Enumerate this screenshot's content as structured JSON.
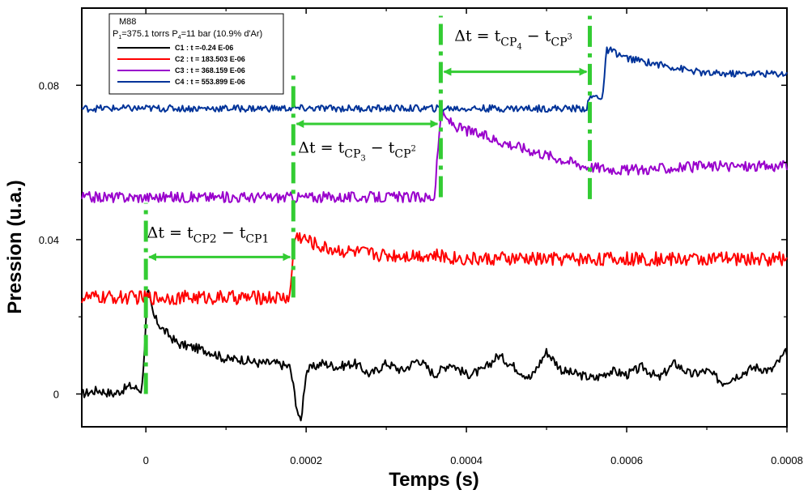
{
  "chart_data": {
    "type": "line",
    "title": "",
    "xlabel": "Temps (s)",
    "ylabel": "Pression (u.a.)",
    "xlim": [
      -8e-05,
      0.0008
    ],
    "ylim": [
      -0.0085,
      0.1
    ],
    "x_ticks": [
      0,
      0.0002,
      0.0004,
      0.0006,
      0.0008
    ],
    "x_tick_labels": [
      "0",
      "0.0002",
      "0.0004",
      "0.0006",
      "0.0008"
    ],
    "y_ticks": [
      0,
      0.04,
      0.08
    ],
    "y_tick_labels": [
      "0",
      "0.04",
      "0.08"
    ],
    "grid": false,
    "legend": {
      "placement": "top-left",
      "title": "M88",
      "subtitle": {
        "p1_prefix": "P",
        "p1_sub": "1",
        "p1_value": "=375.1 torrs   ",
        "p4_prefix": "P",
        "p4_sub": "4",
        "p4_value": "=11 bar   (10.9% d'Ar)"
      },
      "entries": [
        {
          "label": "C1 : t =-0.24 E-06",
          "color": "#000000"
        },
        {
          "label": "C2 : t = 183.503 E-06",
          "color": "#ff0000"
        },
        {
          "label": "C3 : t = 368.159 E-06",
          "color": "#9900cc"
        },
        {
          "label": "C4 : t = 553.899 E-06",
          "color": "#003399"
        }
      ]
    },
    "series": [
      {
        "name": "C1 : t =-0.24 E-06",
        "color": "#000000",
        "x": [
          -8e-05,
          -6e-05,
          -4e-05,
          -2e-05,
          -5e-06,
          0,
          2e-06,
          1e-05,
          2e-05,
          4e-05,
          6e-05,
          8e-05,
          0.0001,
          0.00012,
          0.00014,
          0.00016,
          0.00018,
          0.000188,
          0.000193,
          0.0002,
          0.00022,
          0.00024,
          0.00026,
          0.00028,
          0.0003,
          0.00032,
          0.00034,
          0.00036,
          0.00038,
          0.0004,
          0.00042,
          0.00044,
          0.00046,
          0.00048,
          0.0005,
          0.00052,
          0.00054,
          0.00056,
          0.00058,
          0.0006,
          0.00062,
          0.00064,
          0.00066,
          0.00068,
          0.0007,
          0.00072,
          0.00074,
          0.00076,
          0.00078,
          0.0008
        ],
        "y": [
          0,
          0.001,
          0,
          0.002,
          0.001,
          0.018,
          0.027,
          0.02,
          0.017,
          0.013,
          0.012,
          0.011,
          0.009,
          0.009,
          0.008,
          0.008,
          0.007,
          -0.003,
          -0.008,
          0.006,
          0.008,
          0.007,
          0.008,
          0.005,
          0.008,
          0.006,
          0.009,
          0.005,
          0.008,
          0.005,
          0.006,
          0.01,
          0.007,
          0.004,
          0.011,
          0.006,
          0.005,
          0.004,
          0.006,
          0.005,
          0.007,
          0.004,
          0.008,
          0.005,
          0.006,
          0.003,
          0.005,
          0.007,
          0.006,
          0.011
        ],
        "noise": 0.0012
      },
      {
        "name": "C2 : t = 183.503 E-06",
        "color": "#ff0000",
        "x": [
          -8e-05,
          0,
          5e-05,
          0.0001,
          0.00015,
          0.00018,
          0.000185,
          0.00019,
          0.0002,
          0.00022,
          0.00025,
          0.0003,
          0.00035,
          0.0004,
          0.0005,
          0.0006,
          0.0007,
          0.0008
        ],
        "y": [
          0.025,
          0.025,
          0.025,
          0.025,
          0.025,
          0.025,
          0.04,
          0.041,
          0.04,
          0.038,
          0.037,
          0.036,
          0.036,
          0.035,
          0.035,
          0.035,
          0.035,
          0.035
        ],
        "noise": 0.0018
      },
      {
        "name": "C3 : t = 368.159 E-06",
        "color": "#9900cc",
        "x": [
          -8e-05,
          0,
          0.0001,
          0.0002,
          0.0003,
          0.00036,
          0.000368,
          0.00037,
          0.00039,
          0.00042,
          0.00045,
          0.0005,
          0.00055,
          0.0006,
          0.0007,
          0.0008
        ],
        "y": [
          0.051,
          0.051,
          0.051,
          0.051,
          0.051,
          0.051,
          0.072,
          0.072,
          0.069,
          0.067,
          0.065,
          0.062,
          0.059,
          0.058,
          0.059,
          0.059
        ],
        "noise": 0.0014
      },
      {
        "name": "C4 : t = 553.899 E-06",
        "color": "#003399",
        "x": [
          -8e-05,
          0,
          0.0002,
          0.0004,
          0.00055,
          0.000553,
          0.000555,
          0.00057,
          0.000575,
          0.00058,
          0.0006,
          0.00065,
          0.0007,
          0.00075,
          0.0008
        ],
        "y": [
          0.074,
          0.074,
          0.074,
          0.074,
          0.074,
          0.076,
          0.077,
          0.077,
          0.089,
          0.089,
          0.087,
          0.085,
          0.083,
          0.083,
          0.083
        ],
        "noise": 0.0009
      }
    ],
    "markers": {
      "color": "#33cc33",
      "lines": [
        {
          "x": 0,
          "y_from": 0,
          "y_to": 0.0495
        },
        {
          "x": 0.000184,
          "y_from": 0.025,
          "y_to": 0.0825
        },
        {
          "x": 0.000368,
          "y_from": 0.051,
          "y_to": 0.098
        },
        {
          "x": 0.000554,
          "y_from": 0.0505,
          "y_to": 0.098
        }
      ],
      "arrows": [
        {
          "x1": 0,
          "x2": 0.000184,
          "y": 0.0355
        },
        {
          "x1": 0.000184,
          "x2": 0.000368,
          "y": 0.07
        },
        {
          "x1": 0.000368,
          "x2": 0.000554,
          "y": 0.0835
        }
      ],
      "annotations": [
        {
          "delta": "Δt = t",
          "sub_a": "CP2",
          "minus": " − t",
          "sub_b": "CP1",
          "x": 1.5e-06,
          "y": 0.0405
        },
        {
          "delta": "Δt = t",
          "sub_a": "CP",
          "sup_a": "3",
          "minus": " − t",
          "sub_b": "CP",
          "sup_b": "2",
          "x": 0.00019,
          "y": 0.0625
        },
        {
          "delta": "Δt = t",
          "sub_a": "CP",
          "sup_a": "4",
          "minus": " − t",
          "sub_b": "CP",
          "sup_b": "3",
          "x": 0.000385,
          "y": 0.0915
        }
      ]
    }
  }
}
